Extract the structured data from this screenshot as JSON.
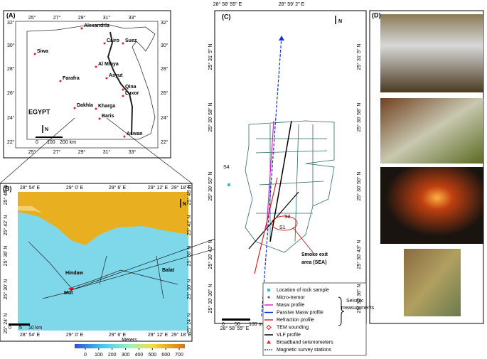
{
  "panel_a": {
    "label": "(A)",
    "top_ticks": [
      "25°",
      "27°",
      "29°",
      "31°",
      "33°"
    ],
    "left_ticks": [
      "32°",
      "30°",
      "28°",
      "26°",
      "24°",
      "22°"
    ],
    "cities": [
      "Alexandria",
      "Cairo",
      "Suez",
      "Siwa",
      "Al Minya",
      "Farafra",
      "Asyut",
      "Qina",
      "Luxor",
      "Dakhla",
      "Kharga",
      "Baris",
      "Aswan"
    ],
    "country": "EGYPT",
    "north": "N",
    "scale": [
      "0",
      "100",
      "200 km"
    ]
  },
  "panel_b": {
    "label": "(B)",
    "top_ticks": [
      "28° 54' E",
      "29° 0' E",
      "29° 6' E",
      "29° 12' E",
      "29° 18' E"
    ],
    "left_ticks": [
      "25° 48' N",
      "25° 42' N",
      "25° 36' N",
      "25° 30' N",
      "25° 24' N"
    ],
    "places": [
      "Hindaw",
      "Mut",
      "Balat"
    ],
    "north": "N",
    "scale": [
      "0",
      "5",
      "10 km"
    ],
    "colorbar": {
      "title": "Meters",
      "ticks": [
        0,
        100,
        200,
        300,
        400,
        500,
        600,
        700
      ]
    }
  },
  "panel_c": {
    "label": "(C)",
    "top_ticks": [
      "28° 58' 55\" E",
      "28° 59' 2\" E"
    ],
    "left_ticks": [
      "25° 31' 5\" N",
      "25° 30' 58\" N",
      "25° 30' 50\" N",
      "25° 30' 43\" N",
      "25° 30' 36\" N"
    ],
    "north": "N",
    "samples": [
      "S4",
      "S1",
      "S2"
    ],
    "sea": [
      "Smoke exit",
      "area (SEA)"
    ],
    "scale": [
      "0",
      "50",
      "100 m"
    ],
    "legend": [
      "Location of rock sample",
      "Micro-tremor",
      "Masw profile",
      "Passive Masw profile",
      "Refraction profile",
      "TEM sounding",
      "VLF profile",
      "Broadband seismometers",
      "Magnetic survey stations"
    ],
    "group": [
      "Seismic",
      "measurements"
    ]
  },
  "panel_d": {
    "label": "(D)"
  }
}
